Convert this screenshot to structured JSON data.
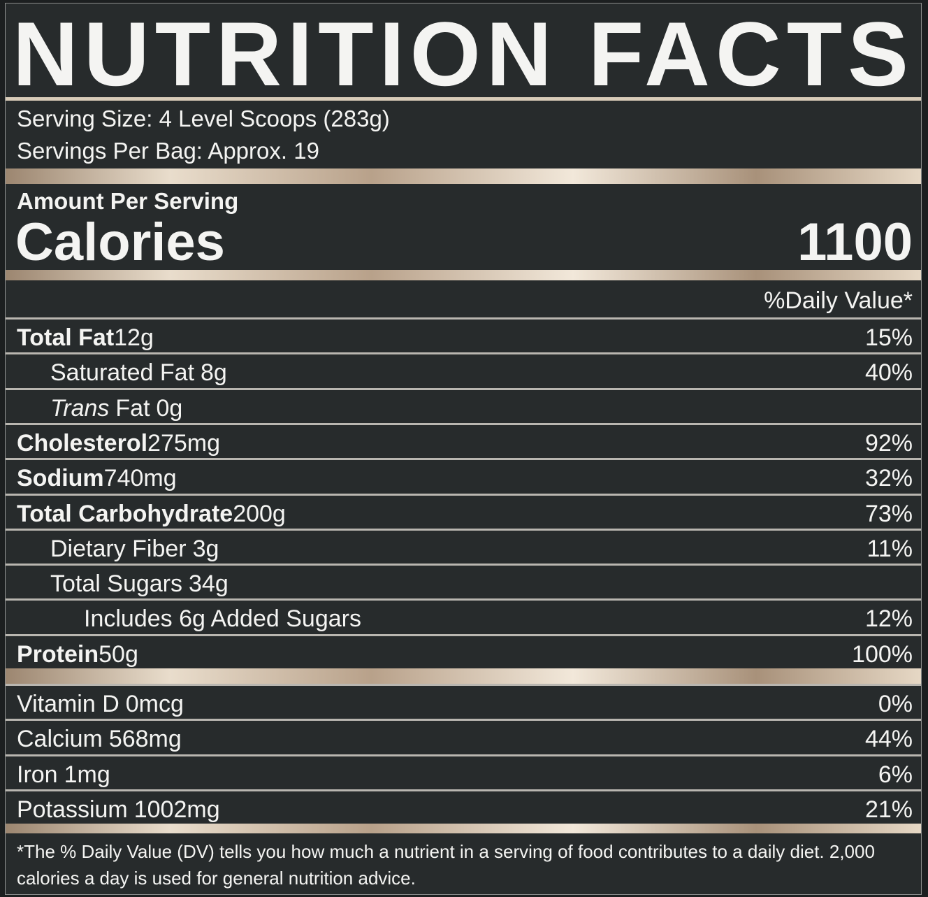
{
  "title": "NUTRITION FACTS",
  "serving": [
    "Serving Size: 4 Level Scoops (283g)",
    "Servings Per Bag: Approx. 19"
  ],
  "amount_label": "Amount Per Serving",
  "calories": {
    "label": "Calories",
    "value": "1100"
  },
  "dv_header": "%Daily Value*",
  "nutrients": [
    {
      "name": "Total Fat",
      "amount": "12g",
      "dv": "15%",
      "bold": true,
      "indent": 0
    },
    {
      "name": "Saturated Fat",
      "amount": "8g",
      "dv": "40%",
      "bold": false,
      "indent": 1
    },
    {
      "italic": "Trans",
      "name": "Fat",
      "amount": "0g",
      "bold": false,
      "indent": 1
    },
    {
      "name": "Cholesterol",
      "amount": "275mg",
      "dv": "92%",
      "bold": true,
      "indent": 0
    },
    {
      "name": "Sodium",
      "amount": "740mg",
      "dv": "32%",
      "bold": true,
      "indent": 0
    },
    {
      "name": "Total Carbohydrate",
      "amount": "200g",
      "dv": "73%",
      "bold": true,
      "indent": 0
    },
    {
      "name": "Dietary Fiber",
      "amount": "3g",
      "dv": "11%",
      "bold": false,
      "indent": 1
    },
    {
      "name": "Total Sugars",
      "amount": "34g",
      "bold": false,
      "indent": 1
    },
    {
      "name": "Includes 6g Added Sugars",
      "dv": "12%",
      "bold": false,
      "indent": 2
    },
    {
      "name": "Protein",
      "amount": "50g",
      "dv": "100%",
      "bold": true,
      "indent": 0
    }
  ],
  "vitamins": [
    {
      "name": "Vitamin D",
      "amount": "0mcg",
      "dv": "0%"
    },
    {
      "name": "Calcium",
      "amount": "568mg",
      "dv": "44%"
    },
    {
      "name": "Iron",
      "amount": "1mg",
      "dv": "6%"
    },
    {
      "name": "Potassium",
      "amount": "1002mg",
      "dv": "21%"
    }
  ],
  "footnote": "*The % Daily Value (DV) tells you how much a nutrient in a serving of food contributes to a daily diet. 2,000 calories a day is used for general nutrition advice."
}
